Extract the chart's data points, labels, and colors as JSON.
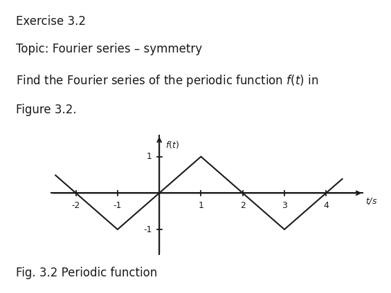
{
  "title_text": "Exercise 3.2",
  "subtitle1": "Topic: Fourier series – symmetry",
  "subtitle2": "Find the Fourier series of the periodic function $f(t)$ in",
  "subtitle3": "Figure 3.2.",
  "fig_caption": "Fig. 3.2 Periodic function",
  "ylabel": "$f(t)$",
  "xlabel": "$t$/s",
  "x_ticks": [
    -2,
    -1,
    1,
    2,
    3,
    4
  ],
  "y_ticks": [
    -1,
    1
  ],
  "xlim": [
    -2.6,
    4.9
  ],
  "ylim": [
    -1.7,
    1.6
  ],
  "wave_x": [
    -2.5,
    -2,
    -1,
    0,
    1,
    2,
    3,
    4,
    4.4
  ],
  "wave_y": [
    0.5,
    0,
    -1,
    0,
    1,
    0,
    -1,
    0,
    0.4
  ],
  "line_color": "#1a1a1a",
  "background_color": "#ffffff",
  "header_bg": "#e0e0e0",
  "text_color": "#1a1a1a",
  "header_fontsize": 12,
  "tick_fontsize": 9,
  "axis_label_fontsize": 9
}
